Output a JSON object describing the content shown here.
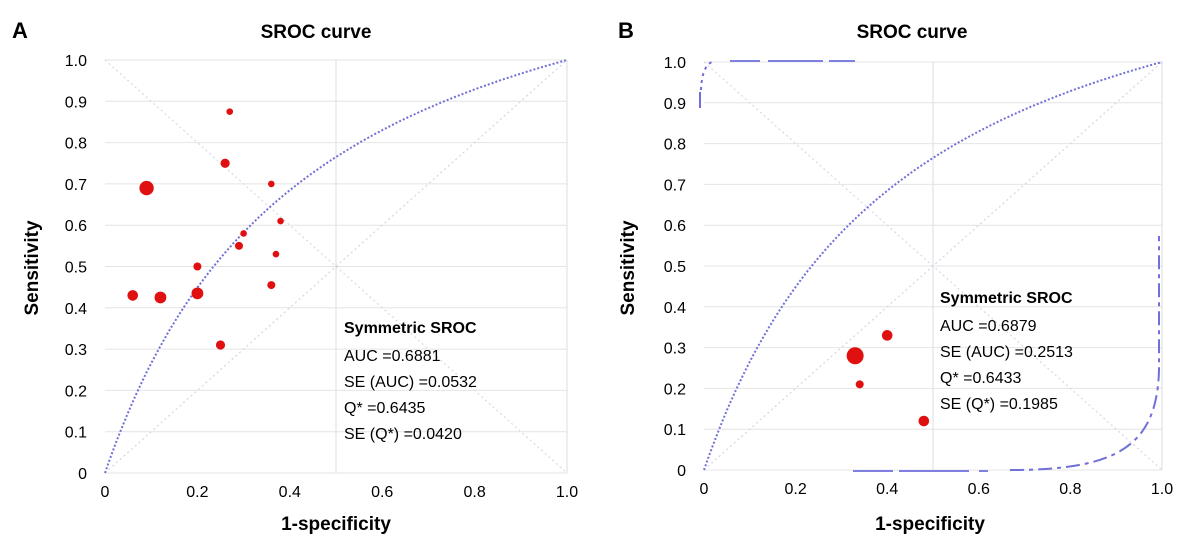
{
  "chart_data": [
    {
      "panel_label": "A",
      "type": "scatter",
      "title": "SROC curve",
      "xlabel": "1-specificity",
      "ylabel": "Sensitivity",
      "xlim": [
        0,
        1
      ],
      "ylim": [
        0,
        1
      ],
      "x_ticks": [
        "0",
        "0.2",
        "0.4",
        "0.6",
        "0.8",
        "1.0"
      ],
      "y_ticks": [
        "0",
        "0.1",
        "0.2",
        "0.3",
        "0.4",
        "0.5",
        "0.6",
        "0.7",
        "0.8",
        "0.9",
        "1.0"
      ],
      "grid": true,
      "points": [
        {
          "x": 0.27,
          "y": 0.875,
          "weight": 1
        },
        {
          "x": 0.26,
          "y": 0.75,
          "weight": 2
        },
        {
          "x": 0.09,
          "y": 0.69,
          "weight": 4
        },
        {
          "x": 0.36,
          "y": 0.7,
          "weight": 1
        },
        {
          "x": 0.38,
          "y": 0.61,
          "weight": 1
        },
        {
          "x": 0.3,
          "y": 0.58,
          "weight": 1
        },
        {
          "x": 0.29,
          "y": 0.55,
          "weight": 1.5
        },
        {
          "x": 0.37,
          "y": 0.53,
          "weight": 1
        },
        {
          "x": 0.2,
          "y": 0.5,
          "weight": 1.5
        },
        {
          "x": 0.06,
          "y": 0.43,
          "weight": 2.5
        },
        {
          "x": 0.12,
          "y": 0.425,
          "weight": 3
        },
        {
          "x": 0.2,
          "y": 0.435,
          "weight": 3
        },
        {
          "x": 0.36,
          "y": 0.455,
          "weight": 1.5
        },
        {
          "x": 0.25,
          "y": 0.31,
          "weight": 2
        }
      ],
      "sroc_auc": 0.6881,
      "stats": {
        "title": "Symmetric SROC",
        "lines": [
          "AUC =0.6881",
          "SE (AUC) =0.0532",
          "Q* =0.6435",
          "SE (Q*) =0.0420"
        ]
      },
      "point_color": "#e01010",
      "curve_color": "#7070d8"
    },
    {
      "panel_label": "B",
      "type": "scatter",
      "title": "SROC curve",
      "xlabel": "1-specificity",
      "ylabel": "Sensitivity",
      "xlim": [
        0,
        1
      ],
      "ylim": [
        0,
        1
      ],
      "x_ticks": [
        "0",
        "0.2",
        "0.4",
        "0.6",
        "0.8",
        "1.0"
      ],
      "y_ticks": [
        "0",
        "0.1",
        "0.2",
        "0.3",
        "0.4",
        "0.5",
        "0.6",
        "0.7",
        "0.8",
        "0.9",
        "1.0"
      ],
      "grid": true,
      "points": [
        {
          "x": 0.33,
          "y": 0.28,
          "weight": 5
        },
        {
          "x": 0.4,
          "y": 0.33,
          "weight": 2.5
        },
        {
          "x": 0.34,
          "y": 0.21,
          "weight": 1.5
        },
        {
          "x": 0.48,
          "y": 0.12,
          "weight": 2.5
        }
      ],
      "sroc_auc": 0.6879,
      "stats": {
        "title": "Symmetric SROC",
        "lines": [
          "AUC =0.6879",
          "SE (AUC) =0.2513",
          "Q* =0.6433",
          "SE (Q*) =0.1985"
        ]
      },
      "point_color": "#e01010",
      "curve_color": "#7070d8"
    }
  ]
}
